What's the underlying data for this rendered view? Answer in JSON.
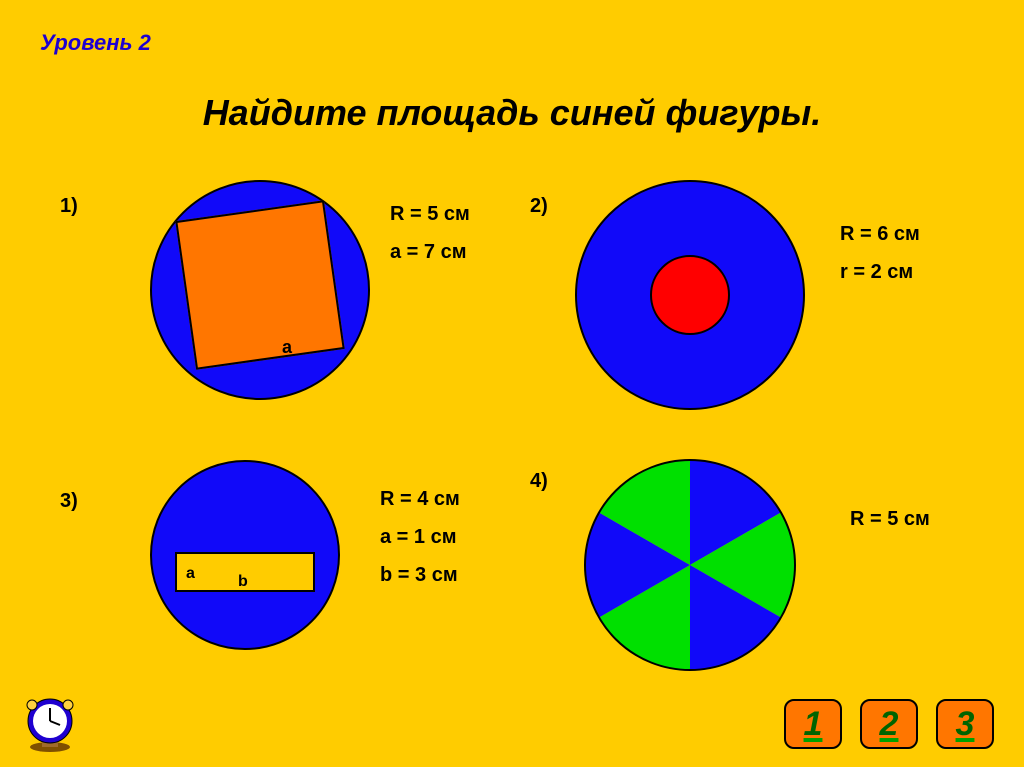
{
  "level_label": "Уровень 2",
  "main_title": "Найдите площадь синей фигуры.",
  "colors": {
    "background": "#ffcc00",
    "blue": "#1109f9",
    "orange": "#ff7600",
    "red": "#ff0000",
    "green": "#00e000",
    "stroke": "#000000",
    "level_text": "#1e00d0",
    "nav_text": "#006400"
  },
  "problem1": {
    "num": "1)",
    "a_label": "a",
    "param_R": "R = 5 см",
    "param_a": "a = 7 см",
    "circle_color": "#1109f9",
    "square_color": "#ff7600"
  },
  "problem2": {
    "num": "2)",
    "param_R": "R = 6 см",
    "param_r": "r = 2 см",
    "outer_color": "#1109f9",
    "inner_color": "#ff0000"
  },
  "problem3": {
    "num": "3)",
    "a_label": "a",
    "b_label": "b",
    "param_R": "R = 4 см",
    "param_a": "a = 1 см",
    "param_b": "b = 3 см",
    "circle_color": "#1109f9",
    "rect_color": "#ffcc00"
  },
  "problem4": {
    "num": "4)",
    "param_R": "R = 5 см",
    "type": "pie",
    "radius": 105,
    "sectors": [
      {
        "start": 0,
        "end": 60,
        "color": "#1109f9"
      },
      {
        "start": 60,
        "end": 120,
        "color": "#00e000"
      },
      {
        "start": 120,
        "end": 180,
        "color": "#1109f9"
      },
      {
        "start": 180,
        "end": 240,
        "color": "#00e000"
      },
      {
        "start": 240,
        "end": 300,
        "color": "#1109f9"
      },
      {
        "start": 300,
        "end": 360,
        "color": "#00e000"
      }
    ]
  },
  "nav": {
    "b1": "1",
    "b2": "2",
    "b3": "3"
  }
}
